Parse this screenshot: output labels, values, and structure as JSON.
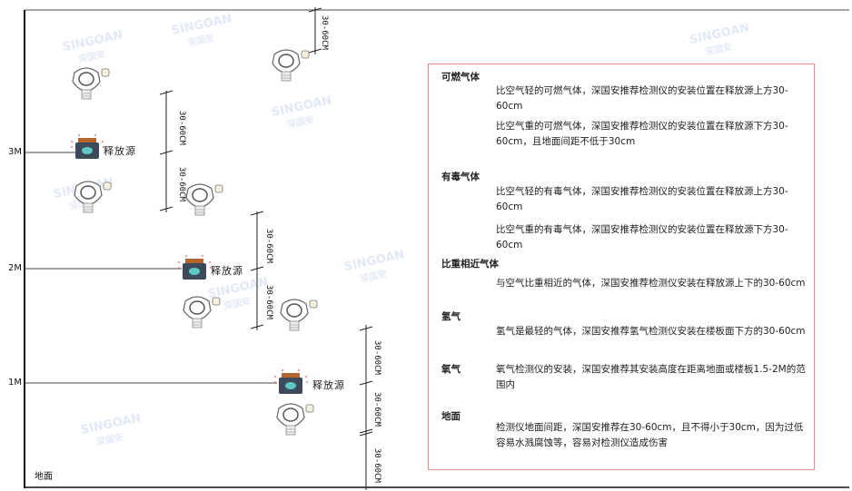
{
  "watermark": {
    "brand": "SINGOAN",
    "cn": "深国安"
  },
  "levels": {
    "m3": "3M",
    "m2": "2M",
    "m1": "1M",
    "ground": "地面"
  },
  "source_label": "释放源",
  "dimension_label": "30-60CM",
  "notes": {
    "combustible": {
      "title": "可燃气体",
      "lighter": "比空气轻的可燃气体，深国安推荐检测仪的安装位置在释放源上方30-60cm",
      "heavier": "比空气重的可燃气体，深国安推荐检测仪的安装位置在释放源下方30-60cm，且地面间距不低于30cm"
    },
    "toxic": {
      "title": "有毒气体",
      "lighter": "比空气轻的有毒气体，深国安推荐检测仪的安装位置在释放源上方30-60cm",
      "heavier": "比空气重的有毒气体，深国安推荐检测仪的安装位置在释放源下方30-60cm"
    },
    "similar": {
      "title": "比重相近气体",
      "text": "与空气比重相近的气体，深国安推荐检测仪安装在释放源上下的30-60cm"
    },
    "hydrogen": {
      "title": "氢气",
      "text": "氢气是最轻的气体，深国安推荐氢气检测仪安装在楼板面下方的30-60cm"
    },
    "oxygen": {
      "title": "氧气",
      "text": "氧气检测仪的安装，深国安推荐其安装高度在距离地面或楼板1.5-2M的范围内"
    },
    "ground": {
      "title": "地面",
      "text": "检测仪地面间距，深国安推荐在30-60cm，且不得小于30cm，因为过低容易水溅腐蚀等，容易对检测仪造成伤害"
    }
  },
  "colors": {
    "note_border": "#e88a8a",
    "source_body": "#3d4a5a",
    "source_cap": "#b5652e",
    "source_face": "#5fc7c4"
  }
}
